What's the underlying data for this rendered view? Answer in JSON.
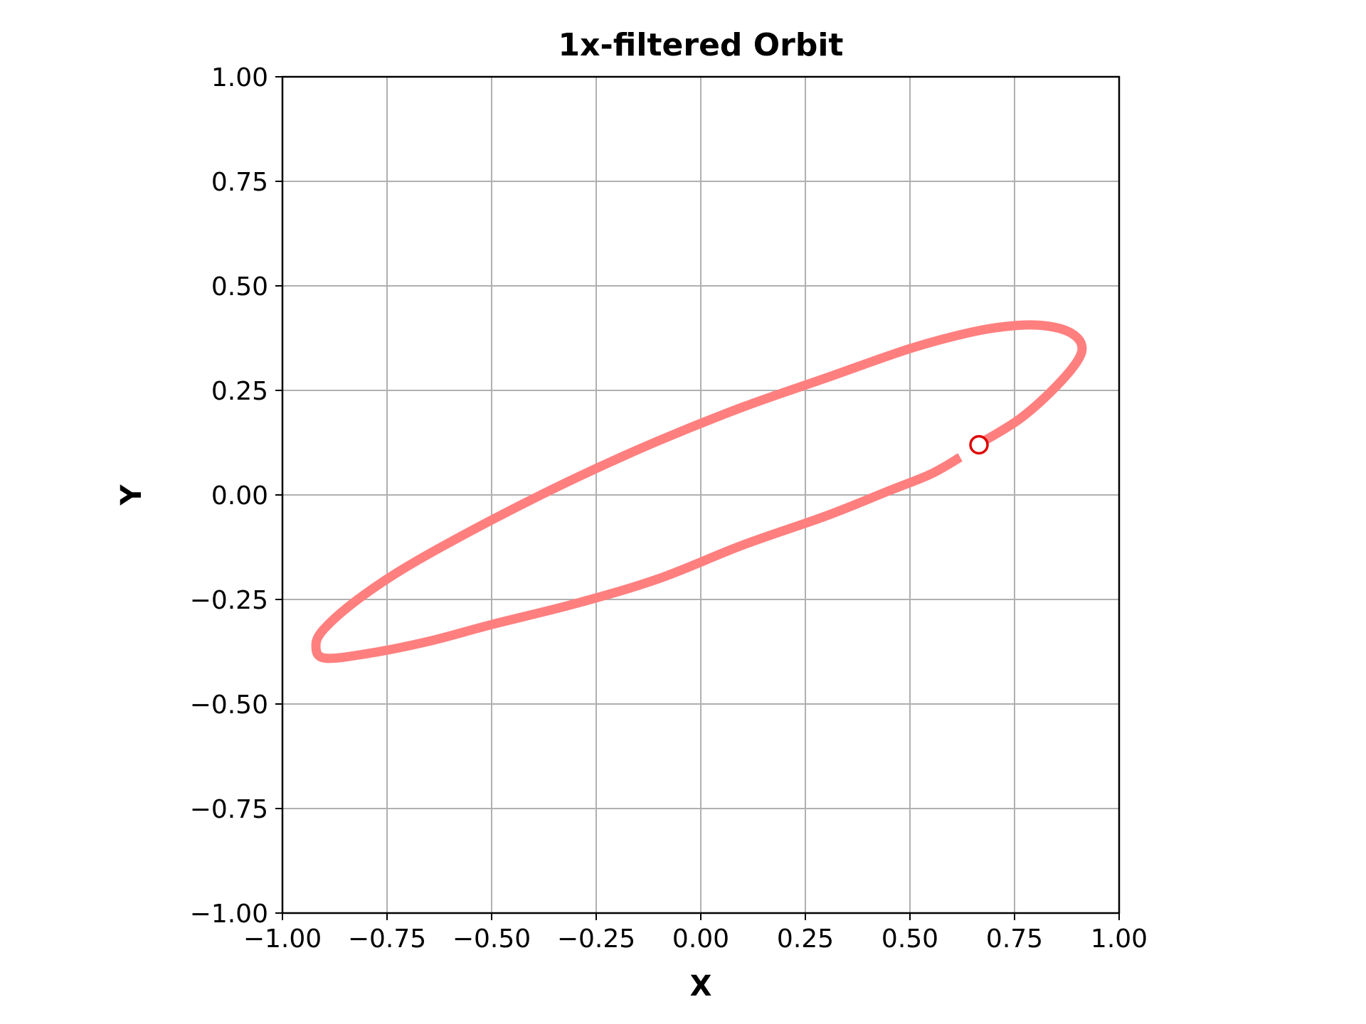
{
  "chart_data": {
    "type": "line",
    "title": "1x-filtered Orbit",
    "xlabel": "X",
    "ylabel": "Y",
    "xlim": [
      -1.0,
      1.0
    ],
    "ylim": [
      -1.0,
      1.0
    ],
    "grid": true,
    "x_ticks": [
      -1.0,
      -0.75,
      -0.5,
      -0.25,
      0.0,
      0.25,
      0.5,
      0.75,
      1.0
    ],
    "y_ticks": [
      -1.0,
      -0.75,
      -0.5,
      -0.25,
      0.0,
      0.25,
      0.5,
      0.75,
      1.0
    ],
    "x_tick_labels": [
      "−1.00",
      "−0.75",
      "−0.50",
      "−0.25",
      "0.00",
      "0.25",
      "0.50",
      "0.75",
      "1.00"
    ],
    "y_tick_labels": [
      "−1.00",
      "−0.75",
      "−0.50",
      "−0.25",
      "0.00",
      "0.25",
      "0.50",
      "0.75",
      "1.00"
    ],
    "series": [
      {
        "color": "#ff7f7f",
        "x": [
          0.62,
          0.55,
          0.45,
          0.3,
          0.1,
          -0.1,
          -0.3,
          -0.5,
          -0.65,
          -0.8,
          -0.9,
          -0.92,
          -0.9,
          -0.82,
          -0.7,
          -0.5,
          -0.3,
          -0.1,
          0.1,
          0.3,
          0.5,
          0.65,
          0.75,
          0.82,
          0.88,
          0.91,
          0.9,
          0.84,
          0.76,
          0.67
        ],
        "y": [
          0.09,
          0.05,
          0.01,
          -0.05,
          -0.12,
          -0.2,
          -0.26,
          -0.31,
          -0.35,
          -0.38,
          -0.39,
          -0.36,
          -0.32,
          -0.25,
          -0.17,
          -0.06,
          0.04,
          0.13,
          0.21,
          0.28,
          0.35,
          0.39,
          0.405,
          0.405,
          0.39,
          0.36,
          0.32,
          0.25,
          0.18,
          0.125
        ]
      }
    ],
    "marker": {
      "x": 0.665,
      "y": 0.12,
      "color": "#e00000"
    }
  }
}
